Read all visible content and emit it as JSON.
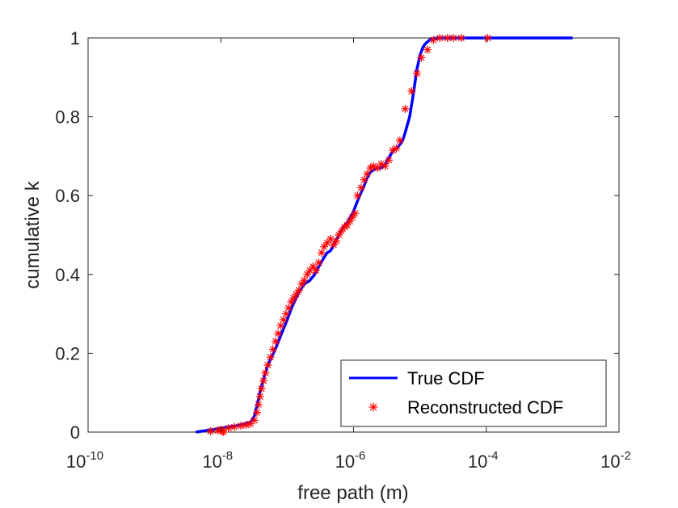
{
  "chart_data": {
    "type": "line",
    "title": "",
    "xlabel": "free path (m)",
    "ylabel": "cumulative k",
    "xscale": "log",
    "xlim": [
      1e-10,
      0.01
    ],
    "ylim": [
      0,
      1
    ],
    "grid": false,
    "legend_position": "bottom-right",
    "x_ticks": [
      {
        "value": 1e-10,
        "base": "10",
        "exp": "-10"
      },
      {
        "value": 1e-08,
        "base": "10",
        "exp": "-8"
      },
      {
        "value": 1e-06,
        "base": "10",
        "exp": "-6"
      },
      {
        "value": 0.0001,
        "base": "10",
        "exp": "-4"
      },
      {
        "value": 0.01,
        "base": "10",
        "exp": "-2"
      }
    ],
    "y_ticks": [
      {
        "value": 0,
        "label": "0"
      },
      {
        "value": 0.2,
        "label": "0.2"
      },
      {
        "value": 0.4,
        "label": "0.4"
      },
      {
        "value": 0.6,
        "label": "0.6"
      },
      {
        "value": 0.8,
        "label": "0.8"
      },
      {
        "value": 1,
        "label": "1"
      }
    ],
    "series": [
      {
        "name": "True CDF",
        "style": "line",
        "color": "#0000ff",
        "x": [
          4.2e-09,
          6e-09,
          8e-09,
          1e-08,
          1.3e-08,
          1.7e-08,
          2.2e-08,
          2.8e-08,
          3.2e-08,
          3.6e-08,
          4e-08,
          4.5e-08,
          5e-08,
          6e-08,
          7e-08,
          8e-08,
          1e-07,
          1.2e-07,
          1.5e-07,
          1.8e-07,
          2.2e-07,
          2.6e-07,
          3e-07,
          3.5e-07,
          4e-07,
          4.5e-07,
          5e-07,
          6e-07,
          7e-07,
          8e-07,
          9e-07,
          1e-06,
          1.2e-06,
          1.4e-06,
          1.6e-06,
          1.8e-06,
          2e-06,
          2.3e-06,
          2.6e-06,
          3e-06,
          3.5e-06,
          4e-06,
          4.5e-06,
          5e-06,
          5.5e-06,
          6e-06,
          7e-06,
          8e-06,
          9e-06,
          1e-05,
          1.1e-05,
          1.2e-05,
          1.3e-05,
          1.4e-05,
          1.6e-05,
          1.8e-05,
          2e-05,
          3e-05,
          0.0001,
          0.001,
          0.002
        ],
        "y": [
          0.0,
          0.004,
          0.007,
          0.01,
          0.013,
          0.016,
          0.02,
          0.025,
          0.04,
          0.075,
          0.11,
          0.14,
          0.165,
          0.195,
          0.22,
          0.245,
          0.285,
          0.32,
          0.355,
          0.375,
          0.385,
          0.4,
          0.42,
          0.44,
          0.455,
          0.46,
          0.475,
          0.5,
          0.52,
          0.53,
          0.545,
          0.56,
          0.595,
          0.62,
          0.645,
          0.66,
          0.665,
          0.67,
          0.67,
          0.68,
          0.7,
          0.715,
          0.72,
          0.73,
          0.74,
          0.76,
          0.8,
          0.86,
          0.92,
          0.955,
          0.975,
          0.985,
          0.99,
          0.995,
          0.998,
          1.0,
          1.0,
          1.0,
          1.0,
          1.0,
          1.0
        ]
      },
      {
        "name": "Reconstructed CDF",
        "style": "marker",
        "marker": "asterisk",
        "color": "#ff0000",
        "x": [
          7e-09,
          9e-09,
          1e-08,
          1.05e-08,
          1.1e-08,
          1.3e-08,
          1.6e-08,
          2e-08,
          2.4e-08,
          2.8e-08,
          3.2e-08,
          3.5e-08,
          3.7e-08,
          3.9e-08,
          4.1e-08,
          4.4e-08,
          4.7e-08,
          5.1e-08,
          5.6e-08,
          6.1e-08,
          6.7e-08,
          7.3e-08,
          8e-08,
          8.8e-08,
          9.6e-08,
          1.05e-07,
          1.15e-07,
          1.25e-07,
          1.37e-07,
          1.5e-07,
          1.65e-07,
          1.8e-07,
          2e-07,
          2.2e-07,
          2.45e-07,
          2.7e-07,
          3e-07,
          3.3e-07,
          3.6e-07,
          4e-07,
          4.5e-07,
          5e-07,
          5.5e-07,
          6e-07,
          6.6e-07,
          7.3e-07,
          8e-07,
          8.8e-07,
          9.6e-07,
          1.05e-06,
          1.15e-06,
          1.3e-06,
          1.45e-06,
          1.6e-06,
          1.8e-06,
          2e-06,
          2.3e-06,
          2.6e-06,
          3e-06,
          3.4e-06,
          3.9e-06,
          4.4e-06,
          5e-06,
          6e-06,
          7.5e-06,
          9e-06,
          1.05e-05,
          1.3e-05,
          1.6e-05,
          2e-05,
          2.6e-05,
          3.2e-05,
          4.2e-05,
          0.000105
        ],
        "y": [
          0.002,
          0.004,
          0.006,
          0.003,
          0.0,
          0.01,
          0.013,
          0.016,
          0.018,
          0.021,
          0.03,
          0.05,
          0.07,
          0.09,
          0.11,
          0.13,
          0.15,
          0.17,
          0.19,
          0.21,
          0.23,
          0.25,
          0.27,
          0.285,
          0.3,
          0.315,
          0.33,
          0.34,
          0.35,
          0.36,
          0.375,
          0.385,
          0.4,
          0.41,
          0.42,
          0.41,
          0.43,
          0.455,
          0.47,
          0.48,
          0.49,
          0.475,
          0.485,
          0.5,
          0.51,
          0.52,
          0.525,
          0.535,
          0.545,
          0.555,
          0.6,
          0.62,
          0.64,
          0.655,
          0.67,
          0.675,
          0.67,
          0.68,
          0.675,
          0.69,
          0.715,
          0.72,
          0.74,
          0.82,
          0.865,
          0.91,
          0.95,
          0.97,
          0.995,
          1.0,
          1.0,
          1.0,
          1.0,
          1.0
        ]
      }
    ]
  }
}
